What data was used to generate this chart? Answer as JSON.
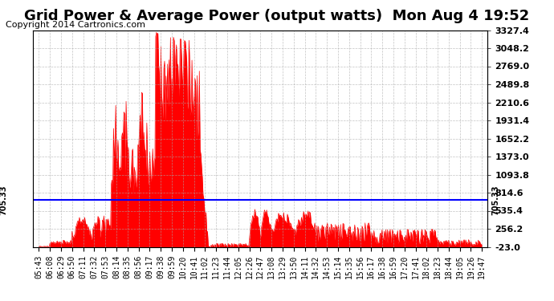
{
  "title": "Grid Power & Average Power (output watts)  Mon Aug 4 19:52",
  "copyright": "Copyright 2014 Cartronics.com",
  "average_value": 705.33,
  "y_min": -23.0,
  "y_max": 3327.4,
  "yticks": [
    -23.0,
    256.2,
    535.4,
    814.6,
    1093.8,
    1373.0,
    1652.2,
    1931.4,
    2210.6,
    2489.8,
    2769.0,
    3048.2,
    3327.4
  ],
  "background_color": "#ffffff",
  "plot_bg_color": "#ffffff",
  "grid_color": "#aaaaaa",
  "fill_color": "#ff0000",
  "line_color": "#ff0000",
  "average_line_color": "#0000ff",
  "legend_average_bg": "#0000cd",
  "legend_grid_bg": "#cc0000",
  "x_labels": [
    "05:43",
    "06:08",
    "06:29",
    "06:50",
    "07:11",
    "07:32",
    "07:53",
    "08:14",
    "08:35",
    "08:56",
    "09:17",
    "09:38",
    "09:59",
    "10:20",
    "10:41",
    "11:02",
    "11:23",
    "11:44",
    "12:05",
    "12:26",
    "12:47",
    "13:08",
    "13:29",
    "13:50",
    "14:11",
    "14:32",
    "14:53",
    "15:14",
    "15:35",
    "15:56",
    "16:17",
    "16:38",
    "16:59",
    "17:20",
    "17:41",
    "18:02",
    "18:23",
    "18:44",
    "19:05",
    "19:26",
    "19:47"
  ],
  "title_fontsize": 13,
  "copyright_fontsize": 8,
  "tick_fontsize": 8,
  "legend_fontsize": 8
}
